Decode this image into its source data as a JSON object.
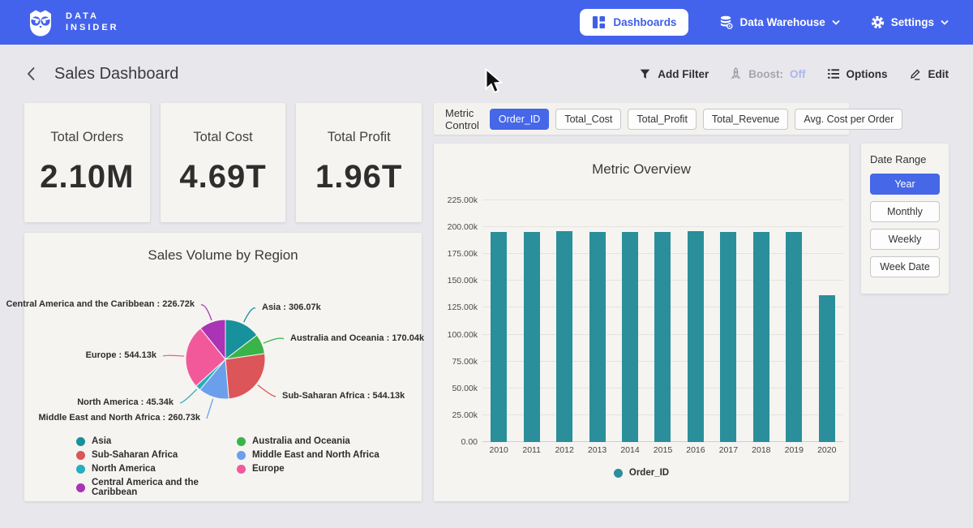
{
  "nav": {
    "brand_line1": "DATA",
    "brand_line2": "INSIDER",
    "dashboards_label": "Dashboards",
    "data_warehouse_label": "Data Warehouse",
    "settings_label": "Settings"
  },
  "header": {
    "title": "Sales Dashboard",
    "add_filter_label": "Add Filter",
    "boost_label": "Boost:",
    "boost_state": "Off",
    "options_label": "Options",
    "edit_label": "Edit"
  },
  "kpis": [
    {
      "label": "Total Orders",
      "value": "2.10M"
    },
    {
      "label": "Total Cost",
      "value": "4.69T"
    },
    {
      "label": "Total Profit",
      "value": "1.96T"
    }
  ],
  "metric_control": {
    "label": "Metric Control",
    "options": [
      "Order_ID",
      "Total_Cost",
      "Total_Profit",
      "Total_Revenue",
      "Avg. Cost per Order"
    ],
    "selected": "Order_ID"
  },
  "date_range": {
    "label": "Date Range",
    "options": [
      "Year",
      "Monthly",
      "Weekly",
      "Week Date"
    ],
    "selected": "Year"
  },
  "colors": {
    "nav_bg": "#4463ec",
    "accent_blue": "#4667e8",
    "boost_off": "#a9b7f1",
    "page_bg": "#e8e7ec",
    "card_bg": "#f5f4f1"
  },
  "chart_data": [
    {
      "type": "pie",
      "title": "Sales Volume by Region",
      "value_suffix": "k",
      "slices": [
        {
          "name": "Asia",
          "value_k": 306.07,
          "color": "#17919b"
        },
        {
          "name": "Australia and Oceania",
          "value_k": 170.04,
          "color": "#3ab449"
        },
        {
          "name": "Sub-Saharan Africa",
          "value_k": 544.13,
          "color": "#dc5558"
        },
        {
          "name": "Middle East and North Africa",
          "value_k": 260.73,
          "color": "#6b9fec"
        },
        {
          "name": "North America",
          "value_k": 45.34,
          "color": "#27aec0"
        },
        {
          "name": "Europe",
          "value_k": 544.13,
          "color": "#f2599b"
        },
        {
          "name": "Central America and the Caribbean",
          "value_k": 226.72,
          "color": "#ab33b5"
        }
      ],
      "legend_columns": [
        [
          "Asia",
          "Sub-Saharan Africa",
          "North America",
          "Central America and the Caribbean"
        ],
        [
          "Australia and Oceania",
          "Middle East and North Africa",
          "Europe"
        ]
      ]
    },
    {
      "type": "bar",
      "title": "Metric Overview",
      "categories": [
        "2010",
        "2011",
        "2012",
        "2013",
        "2014",
        "2015",
        "2016",
        "2017",
        "2018",
        "2019",
        "2020"
      ],
      "series": [
        {
          "name": "Order_ID",
          "color": "#2a8f9a",
          "values_k": [
            195.6,
            195.6,
            196.6,
            195.5,
            195.4,
            195.5,
            196.6,
            195.5,
            195.4,
            195.5,
            136.6
          ]
        }
      ],
      "ylim_k": [
        0,
        225
      ],
      "ytick_step_k": 25,
      "grid": true,
      "legend_position": "bottom"
    }
  ]
}
